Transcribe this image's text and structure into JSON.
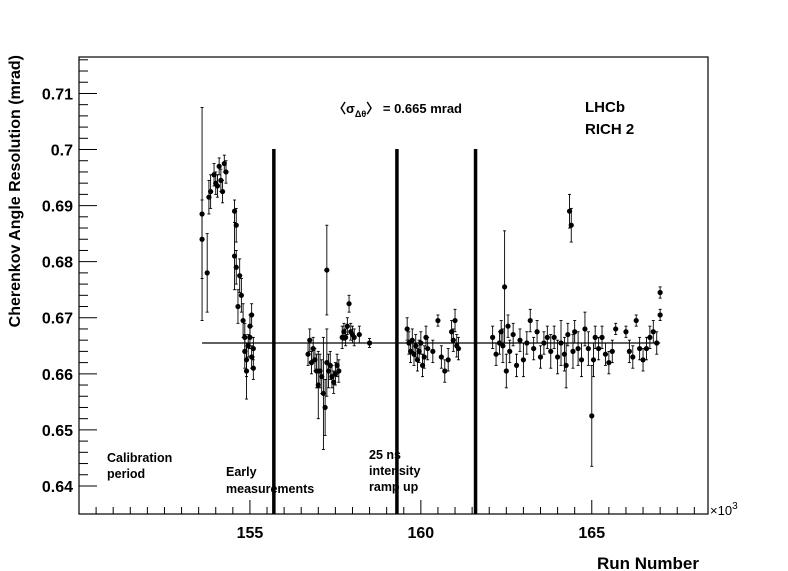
{
  "chart_data": {
    "type": "scatter",
    "xlabel": "Run Number",
    "ylabel": "Cherenkov Angle Resolution  (mrad)",
    "x_multiplier_label": "×10",
    "x_multiplier_exp": "3",
    "xlim": [
      150.0,
      168.4
    ],
    "ylim": [
      0.635,
      0.7165
    ],
    "x_ticks": [
      155,
      160,
      165
    ],
    "y_ticks": [
      0.64,
      0.65,
      0.66,
      0.67,
      0.68,
      0.69,
      0.7,
      0.71
    ],
    "y_tick_labels": [
      "0.64",
      "0.65",
      "0.66",
      "0.67",
      "0.68",
      "0.69",
      "0.7",
      "0.71"
    ],
    "x_tick_labels": [
      "155",
      "160",
      "165"
    ],
    "grid": false,
    "mean_line": {
      "y": 0.6655,
      "x_start": 153.6,
      "x_end": 167.0
    },
    "annotations": {
      "mean_prefix": "〈σ",
      "mean_sub": "Δθ",
      "mean_suffix": "〉 = 0.665 mrad",
      "experiment": "LHCb",
      "detector": "RICH 2",
      "period1_line1": "Calibration",
      "period1_line2": "period",
      "period2_line1": "Early",
      "period2_line2": "measurements",
      "period3_line1": "25 ns",
      "period3_line2": "intensity",
      "period3_line3": "ramp up"
    },
    "separators": [
      155.7,
      159.3,
      161.6
    ],
    "separator_top": 0.7001,
    "points": [
      {
        "x": 153.6,
        "y": 0.6885,
        "e": 0.019
      },
      {
        "x": 153.6,
        "y": 0.684,
        "e": 0.007
      },
      {
        "x": 153.75,
        "y": 0.678,
        "e": 0.007
      },
      {
        "x": 153.8,
        "y": 0.6915,
        "e": 0.003
      },
      {
        "x": 153.85,
        "y": 0.6925,
        "e": 0.003
      },
      {
        "x": 153.95,
        "y": 0.6955,
        "e": 0.002
      },
      {
        "x": 154.0,
        "y": 0.694,
        "e": 0.002
      },
      {
        "x": 154.05,
        "y": 0.6935,
        "e": 0.002
      },
      {
        "x": 154.1,
        "y": 0.697,
        "e": 0.0015
      },
      {
        "x": 154.15,
        "y": 0.6945,
        "e": 0.002
      },
      {
        "x": 154.2,
        "y": 0.6925,
        "e": 0.002
      },
      {
        "x": 154.25,
        "y": 0.6975,
        "e": 0.0015
      },
      {
        "x": 154.3,
        "y": 0.696,
        "e": 0.002
      },
      {
        "x": 154.55,
        "y": 0.689,
        "e": 0.002
      },
      {
        "x": 154.55,
        "y": 0.681,
        "e": 0.006
      },
      {
        "x": 154.6,
        "y": 0.6865,
        "e": 0.003
      },
      {
        "x": 154.6,
        "y": 0.679,
        "e": 0.003
      },
      {
        "x": 154.65,
        "y": 0.672,
        "e": 0.003
      },
      {
        "x": 154.7,
        "y": 0.6775,
        "e": 0.003
      },
      {
        "x": 154.75,
        "y": 0.674,
        "e": 0.003
      },
      {
        "x": 154.8,
        "y": 0.6695,
        "e": 0.003
      },
      {
        "x": 154.85,
        "y": 0.6665,
        "e": 0.0025
      },
      {
        "x": 154.85,
        "y": 0.664,
        "e": 0.003
      },
      {
        "x": 154.9,
        "y": 0.6625,
        "e": 0.003
      },
      {
        "x": 154.9,
        "y": 0.6605,
        "e": 0.005
      },
      {
        "x": 154.95,
        "y": 0.665,
        "e": 0.002
      },
      {
        "x": 155.0,
        "y": 0.6665,
        "e": 0.002
      },
      {
        "x": 155.0,
        "y": 0.6685,
        "e": 0.002
      },
      {
        "x": 155.05,
        "y": 0.6705,
        "e": 0.002
      },
      {
        "x": 155.05,
        "y": 0.663,
        "e": 0.002
      },
      {
        "x": 155.1,
        "y": 0.6645,
        "e": 0.002
      },
      {
        "x": 155.1,
        "y": 0.661,
        "e": 0.002
      },
      {
        "x": 156.7,
        "y": 0.6635,
        "e": 0.002
      },
      {
        "x": 156.75,
        "y": 0.666,
        "e": 0.002
      },
      {
        "x": 156.8,
        "y": 0.662,
        "e": 0.002
      },
      {
        "x": 156.85,
        "y": 0.6645,
        "e": 0.002
      },
      {
        "x": 156.9,
        "y": 0.6625,
        "e": 0.002
      },
      {
        "x": 156.95,
        "y": 0.6605,
        "e": 0.003
      },
      {
        "x": 157.0,
        "y": 0.658,
        "e": 0.006
      },
      {
        "x": 157.05,
        "y": 0.6605,
        "e": 0.003
      },
      {
        "x": 157.1,
        "y": 0.6595,
        "e": 0.003
      },
      {
        "x": 157.15,
        "y": 0.6565,
        "e": 0.01
      },
      {
        "x": 157.2,
        "y": 0.654,
        "e": 0.005
      },
      {
        "x": 157.25,
        "y": 0.6785,
        "e": 0.008
      },
      {
        "x": 157.25,
        "y": 0.662,
        "e": 0.006
      },
      {
        "x": 157.3,
        "y": 0.6605,
        "e": 0.003
      },
      {
        "x": 157.35,
        "y": 0.6615,
        "e": 0.0025
      },
      {
        "x": 157.4,
        "y": 0.6595,
        "e": 0.002
      },
      {
        "x": 157.45,
        "y": 0.6585,
        "e": 0.002
      },
      {
        "x": 157.5,
        "y": 0.66,
        "e": 0.002
      },
      {
        "x": 157.55,
        "y": 0.6615,
        "e": 0.002
      },
      {
        "x": 157.6,
        "y": 0.6605,
        "e": 0.002
      },
      {
        "x": 157.7,
        "y": 0.6665,
        "e": 0.002
      },
      {
        "x": 157.75,
        "y": 0.6675,
        "e": 0.0015
      },
      {
        "x": 157.8,
        "y": 0.6665,
        "e": 0.0015
      },
      {
        "x": 157.85,
        "y": 0.6685,
        "e": 0.0015
      },
      {
        "x": 157.9,
        "y": 0.6725,
        "e": 0.0015
      },
      {
        "x": 157.95,
        "y": 0.6675,
        "e": 0.0015
      },
      {
        "x": 158.0,
        "y": 0.667,
        "e": 0.0015
      },
      {
        "x": 158.05,
        "y": 0.6665,
        "e": 0.0015
      },
      {
        "x": 158.2,
        "y": 0.667,
        "e": 0.0015
      },
      {
        "x": 158.5,
        "y": 0.6655,
        "e": 0.0008
      },
      {
        "x": 159.6,
        "y": 0.668,
        "e": 0.002
      },
      {
        "x": 159.65,
        "y": 0.6655,
        "e": 0.002
      },
      {
        "x": 159.7,
        "y": 0.664,
        "e": 0.002
      },
      {
        "x": 159.75,
        "y": 0.666,
        "e": 0.002
      },
      {
        "x": 159.8,
        "y": 0.6635,
        "e": 0.002
      },
      {
        "x": 159.85,
        "y": 0.665,
        "e": 0.002
      },
      {
        "x": 159.9,
        "y": 0.6625,
        "e": 0.002
      },
      {
        "x": 159.95,
        "y": 0.664,
        "e": 0.002
      },
      {
        "x": 160.0,
        "y": 0.6655,
        "e": 0.002
      },
      {
        "x": 160.05,
        "y": 0.6615,
        "e": 0.002
      },
      {
        "x": 160.1,
        "y": 0.663,
        "e": 0.002
      },
      {
        "x": 160.15,
        "y": 0.6665,
        "e": 0.002
      },
      {
        "x": 160.2,
        "y": 0.6645,
        "e": 0.002
      },
      {
        "x": 160.35,
        "y": 0.664,
        "e": 0.002
      },
      {
        "x": 160.5,
        "y": 0.6695,
        "e": 0.001
      },
      {
        "x": 160.6,
        "y": 0.663,
        "e": 0.002
      },
      {
        "x": 160.7,
        "y": 0.6605,
        "e": 0.002
      },
      {
        "x": 160.8,
        "y": 0.6625,
        "e": 0.002
      },
      {
        "x": 160.9,
        "y": 0.6675,
        "e": 0.002
      },
      {
        "x": 160.95,
        "y": 0.666,
        "e": 0.002
      },
      {
        "x": 161.0,
        "y": 0.6695,
        "e": 0.002
      },
      {
        "x": 161.05,
        "y": 0.665,
        "e": 0.002
      },
      {
        "x": 161.1,
        "y": 0.6645,
        "e": 0.002
      },
      {
        "x": 162.1,
        "y": 0.6665,
        "e": 0.002
      },
      {
        "x": 162.2,
        "y": 0.6635,
        "e": 0.002
      },
      {
        "x": 162.3,
        "y": 0.6655,
        "e": 0.002
      },
      {
        "x": 162.35,
        "y": 0.6675,
        "e": 0.002
      },
      {
        "x": 162.4,
        "y": 0.665,
        "e": 0.003
      },
      {
        "x": 162.45,
        "y": 0.6755,
        "e": 0.01
      },
      {
        "x": 162.5,
        "y": 0.6605,
        "e": 0.003
      },
      {
        "x": 162.55,
        "y": 0.6685,
        "e": 0.002
      },
      {
        "x": 162.6,
        "y": 0.664,
        "e": 0.002
      },
      {
        "x": 162.7,
        "y": 0.667,
        "e": 0.002
      },
      {
        "x": 162.8,
        "y": 0.6615,
        "e": 0.002
      },
      {
        "x": 162.9,
        "y": 0.666,
        "e": 0.002
      },
      {
        "x": 163.0,
        "y": 0.6625,
        "e": 0.003
      },
      {
        "x": 163.1,
        "y": 0.6655,
        "e": 0.002
      },
      {
        "x": 163.2,
        "y": 0.6695,
        "e": 0.002
      },
      {
        "x": 163.3,
        "y": 0.6645,
        "e": 0.002
      },
      {
        "x": 163.4,
        "y": 0.6675,
        "e": 0.002
      },
      {
        "x": 163.5,
        "y": 0.663,
        "e": 0.002
      },
      {
        "x": 163.6,
        "y": 0.6655,
        "e": 0.002
      },
      {
        "x": 163.7,
        "y": 0.6665,
        "e": 0.002
      },
      {
        "x": 163.8,
        "y": 0.664,
        "e": 0.003
      },
      {
        "x": 163.9,
        "y": 0.6665,
        "e": 0.002
      },
      {
        "x": 164.0,
        "y": 0.663,
        "e": 0.003
      },
      {
        "x": 164.1,
        "y": 0.6655,
        "e": 0.004
      },
      {
        "x": 164.2,
        "y": 0.6635,
        "e": 0.003
      },
      {
        "x": 164.25,
        "y": 0.6615,
        "e": 0.004
      },
      {
        "x": 164.3,
        "y": 0.667,
        "e": 0.002
      },
      {
        "x": 164.35,
        "y": 0.689,
        "e": 0.003
      },
      {
        "x": 164.4,
        "y": 0.6865,
        "e": 0.003
      },
      {
        "x": 164.45,
        "y": 0.664,
        "e": 0.003
      },
      {
        "x": 164.5,
        "y": 0.6675,
        "e": 0.002
      },
      {
        "x": 164.6,
        "y": 0.6645,
        "e": 0.003
      },
      {
        "x": 164.7,
        "y": 0.6625,
        "e": 0.003
      },
      {
        "x": 164.8,
        "y": 0.668,
        "e": 0.003
      },
      {
        "x": 164.9,
        "y": 0.6645,
        "e": 0.003
      },
      {
        "x": 165.0,
        "y": 0.6525,
        "e": 0.009
      },
      {
        "x": 165.05,
        "y": 0.6625,
        "e": 0.003
      },
      {
        "x": 165.1,
        "y": 0.6665,
        "e": 0.002
      },
      {
        "x": 165.2,
        "y": 0.6645,
        "e": 0.002
      },
      {
        "x": 165.3,
        "y": 0.6665,
        "e": 0.002
      },
      {
        "x": 165.4,
        "y": 0.6635,
        "e": 0.002
      },
      {
        "x": 165.5,
        "y": 0.662,
        "e": 0.002
      },
      {
        "x": 165.6,
        "y": 0.664,
        "e": 0.002
      },
      {
        "x": 165.7,
        "y": 0.668,
        "e": 0.001
      },
      {
        "x": 166.0,
        "y": 0.6675,
        "e": 0.001
      },
      {
        "x": 166.1,
        "y": 0.664,
        "e": 0.002
      },
      {
        "x": 166.2,
        "y": 0.663,
        "e": 0.002
      },
      {
        "x": 166.3,
        "y": 0.6695,
        "e": 0.001
      },
      {
        "x": 166.4,
        "y": 0.6645,
        "e": 0.002
      },
      {
        "x": 166.5,
        "y": 0.6625,
        "e": 0.002
      },
      {
        "x": 166.6,
        "y": 0.6645,
        "e": 0.002
      },
      {
        "x": 166.7,
        "y": 0.6665,
        "e": 0.002
      },
      {
        "x": 166.8,
        "y": 0.6675,
        "e": 0.002
      },
      {
        "x": 166.9,
        "y": 0.6655,
        "e": 0.002
      },
      {
        "x": 167.0,
        "y": 0.6745,
        "e": 0.001
      },
      {
        "x": 167.0,
        "y": 0.6705,
        "e": 0.001
      }
    ]
  }
}
